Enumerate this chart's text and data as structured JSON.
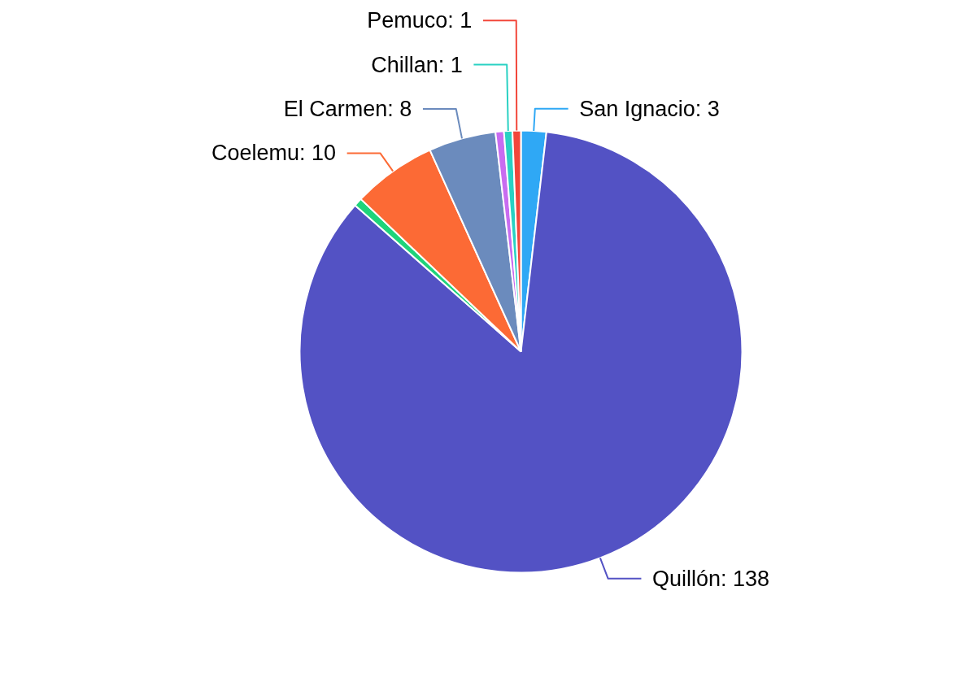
{
  "chart_data": {
    "type": "pie",
    "categories": [
      "San Ignacio",
      "Quillón",
      null,
      "Coelemu",
      "El Carmen",
      null,
      "Chillan",
      "Pemuco"
    ],
    "values": [
      3,
      138,
      1,
      10,
      8,
      1,
      1,
      1
    ],
    "value_labels": [
      "3",
      "138",
      null,
      "10",
      "8",
      null,
      "1",
      "1"
    ],
    "colors": [
      "#2fa8f5",
      "#5352c4",
      "#1ed47a",
      "#fc6a35",
      "#6b8bbd",
      "#c86cf0",
      "#29d1c3",
      "#f2463a"
    ]
  }
}
